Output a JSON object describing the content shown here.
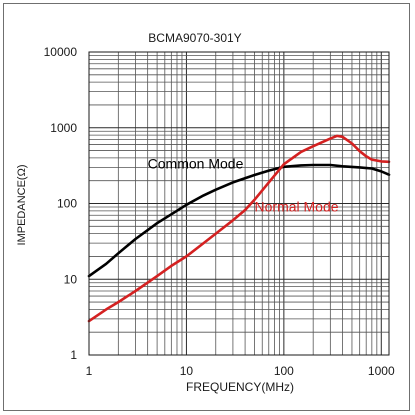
{
  "chart_data": {
    "type": "line",
    "title": "BCMA9070-301Y",
    "xlabel": "FREQUENCY(MHz)",
    "ylabel": "IMPEDANCE(Ω)",
    "x_scale": "log",
    "y_scale": "log",
    "xlim": [
      1,
      1200
    ],
    "ylim": [
      1,
      10000
    ],
    "x_ticks": [
      1,
      10,
      100,
      1000
    ],
    "x_tick_labels": [
      "1",
      "10",
      "100",
      "1000"
    ],
    "y_ticks": [
      1,
      10,
      100,
      1000,
      10000
    ],
    "y_tick_labels": [
      "1",
      "10",
      "100",
      "1000",
      "10000"
    ],
    "grid": true,
    "series": [
      {
        "name": "Common Mode",
        "color": "#000000",
        "x": [
          1,
          1.5,
          2,
          3,
          5,
          7,
          10,
          15,
          20,
          30,
          50,
          70,
          100,
          150,
          200,
          300,
          400,
          600,
          800,
          1000,
          1200
        ],
        "y": [
          11,
          16,
          22,
          34,
          55,
          72,
          96,
          128,
          152,
          190,
          238,
          272,
          305,
          318,
          322,
          322,
          310,
          300,
          290,
          265,
          240
        ]
      },
      {
        "name": "Normal Mode",
        "color": "#d42121",
        "x": [
          1,
          1.5,
          2,
          3,
          5,
          7,
          10,
          15,
          20,
          30,
          40,
          50,
          70,
          100,
          150,
          200,
          300,
          350,
          400,
          500,
          600,
          700,
          800,
          1000,
          1200
        ],
        "y": [
          2.8,
          4.0,
          5.0,
          7.0,
          11,
          15,
          20,
          30,
          40,
          60,
          82,
          112,
          190,
          330,
          480,
          570,
          720,
          780,
          760,
          620,
          490,
          420,
          380,
          360,
          355
        ]
      }
    ],
    "annotations": [
      {
        "text": "Common Mode",
        "x": 4,
        "y": 290,
        "color": "#000000"
      },
      {
        "text": "Normal Mode",
        "x": 50,
        "y": 78,
        "color": "#d42121"
      }
    ]
  }
}
